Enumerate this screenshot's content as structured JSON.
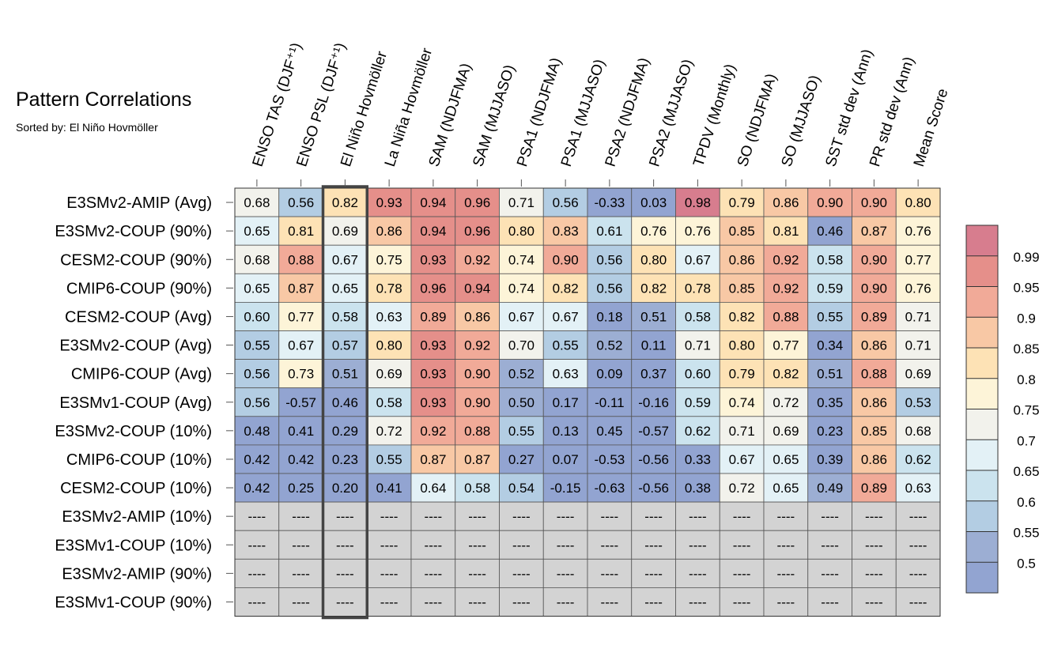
{
  "chart_data": {
    "type": "heatmap",
    "title": "Pattern Correlations",
    "subtitle": "Sorted by: El Niño Hovmöller",
    "columns": [
      "ENSO TAS (DJF⁺¹)",
      "ENSO PSL (DJF⁺¹)",
      "El Niño Hovmöller",
      "La Niña Hovmöller",
      "SAM (NDJFMA)",
      "SAM (MJJASO)",
      "PSA1 (NDJFMA)",
      "PSA1 (MJJASO)",
      "PSA2 (NDJFMA)",
      "PSA2 (MJJASO)",
      "TPDV (Monthly)",
      "SO (NDJFMA)",
      "SO (MJJASO)",
      "SST std dev (Ann)",
      "PR std dev (Ann)",
      "Mean Score"
    ],
    "rows": [
      "E3SMv2-AMIP (Avg)",
      "E3SMv2-COUP (90%)",
      "CESM2-COUP (90%)",
      "CMIP6-COUP (90%)",
      "CESM2-COUP (Avg)",
      "E3SMv2-COUP (Avg)",
      "CMIP6-COUP (Avg)",
      "E3SMv1-COUP (Avg)",
      "E3SMv2-COUP (10%)",
      "CMIP6-COUP (10%)",
      "CESM2-COUP (10%)",
      "E3SMv2-AMIP (10%)",
      "E3SMv1-COUP (10%)",
      "E3SMv2-AMIP (90%)",
      "E3SMv1-COUP (90%)"
    ],
    "values": [
      [
        "0.68",
        "0.56",
        "0.82",
        "0.93",
        "0.94",
        "0.96",
        "0.71",
        "0.56",
        "-0.33",
        "0.03",
        "0.98",
        "0.79",
        "0.86",
        "0.90",
        "0.90",
        "0.80"
      ],
      [
        "0.65",
        "0.81",
        "0.69",
        "0.86",
        "0.94",
        "0.96",
        "0.80",
        "0.83",
        "0.61",
        "0.76",
        "0.76",
        "0.85",
        "0.81",
        "0.46",
        "0.87",
        "0.76"
      ],
      [
        "0.68",
        "0.88",
        "0.67",
        "0.75",
        "0.93",
        "0.92",
        "0.74",
        "0.90",
        "0.56",
        "0.80",
        "0.67",
        "0.86",
        "0.92",
        "0.58",
        "0.90",
        "0.77"
      ],
      [
        "0.65",
        "0.87",
        "0.65",
        "0.78",
        "0.96",
        "0.94",
        "0.74",
        "0.82",
        "0.56",
        "0.82",
        "0.78",
        "0.85",
        "0.92",
        "0.59",
        "0.90",
        "0.76"
      ],
      [
        "0.60",
        "0.77",
        "0.58",
        "0.63",
        "0.89",
        "0.86",
        "0.67",
        "0.67",
        "0.18",
        "0.51",
        "0.58",
        "0.82",
        "0.88",
        "0.55",
        "0.89",
        "0.71"
      ],
      [
        "0.55",
        "0.67",
        "0.57",
        "0.80",
        "0.93",
        "0.92",
        "0.70",
        "0.55",
        "0.52",
        "0.11",
        "0.71",
        "0.80",
        "0.77",
        "0.34",
        "0.86",
        "0.71"
      ],
      [
        "0.56",
        "0.73",
        "0.51",
        "0.69",
        "0.93",
        "0.90",
        "0.52",
        "0.63",
        "0.09",
        "0.37",
        "0.60",
        "0.79",
        "0.82",
        "0.51",
        "0.88",
        "0.69"
      ],
      [
        "0.56",
        "-0.57",
        "0.46",
        "0.58",
        "0.93",
        "0.90",
        "0.50",
        "0.17",
        "-0.11",
        "-0.16",
        "0.59",
        "0.74",
        "0.72",
        "0.35",
        "0.86",
        "0.53"
      ],
      [
        "0.48",
        "0.41",
        "0.29",
        "0.72",
        "0.92",
        "0.88",
        "0.55",
        "0.13",
        "0.45",
        "-0.57",
        "0.62",
        "0.71",
        "0.69",
        "0.23",
        "0.85",
        "0.68"
      ],
      [
        "0.42",
        "0.42",
        "0.23",
        "0.55",
        "0.87",
        "0.87",
        "0.27",
        "0.07",
        "-0.53",
        "-0.56",
        "0.33",
        "0.67",
        "0.65",
        "0.39",
        "0.86",
        "0.62"
      ],
      [
        "0.42",
        "0.25",
        "0.20",
        "0.41",
        "0.64",
        "0.58",
        "0.54",
        "-0.15",
        "-0.63",
        "-0.56",
        "0.38",
        "0.72",
        "0.65",
        "0.49",
        "0.89",
        "0.63"
      ],
      [
        "----",
        "----",
        "----",
        "----",
        "----",
        "----",
        "----",
        "----",
        "----",
        "----",
        "----",
        "----",
        "----",
        "----",
        "----",
        "----"
      ],
      [
        "----",
        "----",
        "----",
        "----",
        "----",
        "----",
        "----",
        "----",
        "----",
        "----",
        "----",
        "----",
        "----",
        "----",
        "----",
        "----"
      ],
      [
        "----",
        "----",
        "----",
        "----",
        "----",
        "----",
        "----",
        "----",
        "----",
        "----",
        "----",
        "----",
        "----",
        "----",
        "----",
        "----"
      ],
      [
        "----",
        "----",
        "----",
        "----",
        "----",
        "----",
        "----",
        "----",
        "----",
        "----",
        "----",
        "----",
        "----",
        "----",
        "----",
        "----"
      ]
    ],
    "highlighted_column": "El Niño Hovmöller",
    "colorbar": {
      "tick_labels": [
        "0.99",
        "0.95",
        "0.9",
        "0.85",
        "0.8",
        "0.75",
        "0.7",
        "0.65",
        "0.6",
        "0.55",
        "0.5"
      ],
      "colors": [
        "#d77d8e",
        "#e58f8a",
        "#f1aa98",
        "#f8c8a5",
        "#fde2b5",
        "#fdf4d8",
        "#f2f2ec",
        "#e3f1f6",
        "#cbe3ee",
        "#b3cde3",
        "#9caed3",
        "#92a4d1"
      ]
    },
    "missing_color": "#d3d3d3"
  }
}
